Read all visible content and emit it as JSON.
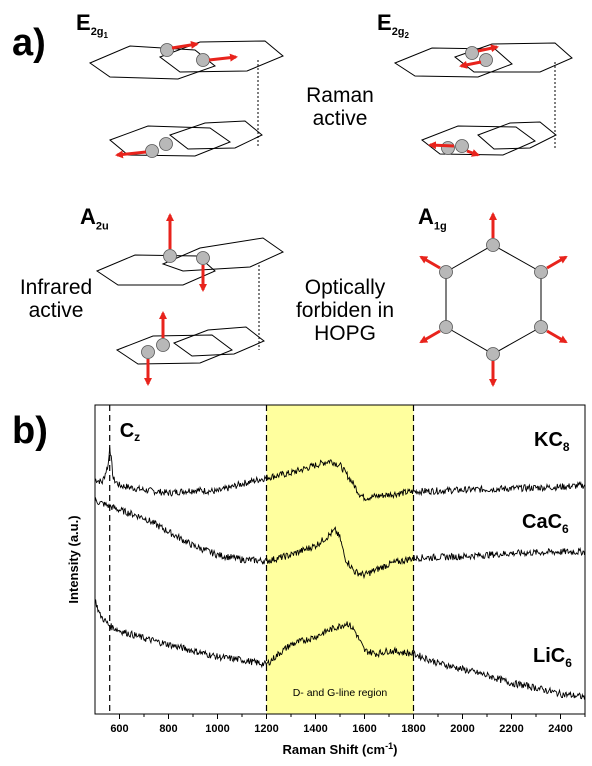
{
  "panel_a": {
    "label": "a)",
    "modes": {
      "e2g1": {
        "symbol": "E",
        "sub": "2g",
        "subsub": "1"
      },
      "e2g2": {
        "symbol": "E",
        "sub": "2g",
        "subsub": "2"
      },
      "a2u": {
        "symbol": "A",
        "sub": "2u"
      },
      "a1g": {
        "symbol": "A",
        "sub": "1g"
      }
    },
    "raman_note": [
      "Raman",
      "active"
    ],
    "infrared_note": [
      "Infrared",
      "active"
    ],
    "forbidden_note": [
      "Optically",
      "forbiden in",
      "HOPG"
    ],
    "colors": {
      "atom": "#b8b8b8",
      "arrow": "#e8231c"
    }
  },
  "panel_b": {
    "label": "b)",
    "region_label": "D- and G-line region",
    "cz_label": {
      "main": "C",
      "sub": "z"
    },
    "colors": {
      "region": "#ffff9e",
      "trace": "#000000"
    }
  },
  "chart_data": {
    "type": "line",
    "xlabel": "Raman Shift (cm-1)",
    "ylabel": "Intensity (a.u.)",
    "xlim": [
      500,
      2500
    ],
    "xticks": [
      600,
      800,
      1000,
      1200,
      1400,
      1600,
      1800,
      2000,
      2200,
      2400
    ],
    "highlight_region": [
      1200,
      1800
    ],
    "dashed_lines": [
      560,
      1200,
      1800
    ],
    "series": [
      {
        "name": "KC8",
        "label_main": "KC",
        "label_sub": "8",
        "x": [
          500,
          530,
          555,
          560,
          575,
          600,
          700,
          800,
          900,
          1000,
          1100,
          1200,
          1300,
          1400,
          1460,
          1500,
          1550,
          1580,
          1600,
          1700,
          1800,
          2000,
          2200,
          2400,
          2500
        ],
        "y": [
          8.1,
          8.0,
          8.6,
          9.2,
          8.1,
          7.9,
          7.75,
          7.65,
          7.75,
          7.7,
          7.95,
          8.15,
          8.3,
          8.55,
          8.7,
          8.55,
          8.0,
          7.62,
          7.5,
          7.6,
          7.7,
          7.75,
          7.8,
          7.85,
          7.9
        ]
      },
      {
        "name": "CaC6",
        "label_main": "CaC",
        "label_sub": "6",
        "x": [
          500,
          600,
          700,
          800,
          900,
          1000,
          1100,
          1200,
          1300,
          1400,
          1450,
          1480,
          1500,
          1520,
          1560,
          1600,
          1700,
          1800,
          2000,
          2200,
          2400,
          2500
        ],
        "y": [
          7.4,
          7.1,
          6.85,
          6.4,
          5.95,
          5.65,
          5.5,
          5.45,
          5.65,
          5.95,
          6.25,
          6.45,
          6.2,
          5.55,
          5.1,
          5.0,
          5.35,
          5.55,
          5.6,
          5.7,
          5.75,
          5.75
        ]
      },
      {
        "name": "LiC6",
        "label_main": "LiC",
        "label_sub": "6",
        "x": [
          500,
          520,
          560,
          600,
          700,
          800,
          900,
          1000,
          1100,
          1200,
          1250,
          1300,
          1400,
          1450,
          1500,
          1530,
          1560,
          1600,
          1650,
          1700,
          1800,
          1900,
          2000,
          2100,
          2200,
          2300,
          2400,
          2500
        ],
        "y": [
          4.2,
          3.7,
          3.35,
          3.2,
          2.95,
          2.75,
          2.55,
          2.35,
          2.25,
          2.1,
          2.45,
          2.75,
          3.0,
          3.2,
          3.35,
          3.45,
          3.2,
          2.55,
          2.45,
          2.55,
          2.45,
          2.15,
          1.95,
          1.75,
          1.5,
          1.35,
          1.15,
          1.05
        ]
      }
    ],
    "ylim": [
      0.5,
      10.5
    ],
    "grid": false
  }
}
